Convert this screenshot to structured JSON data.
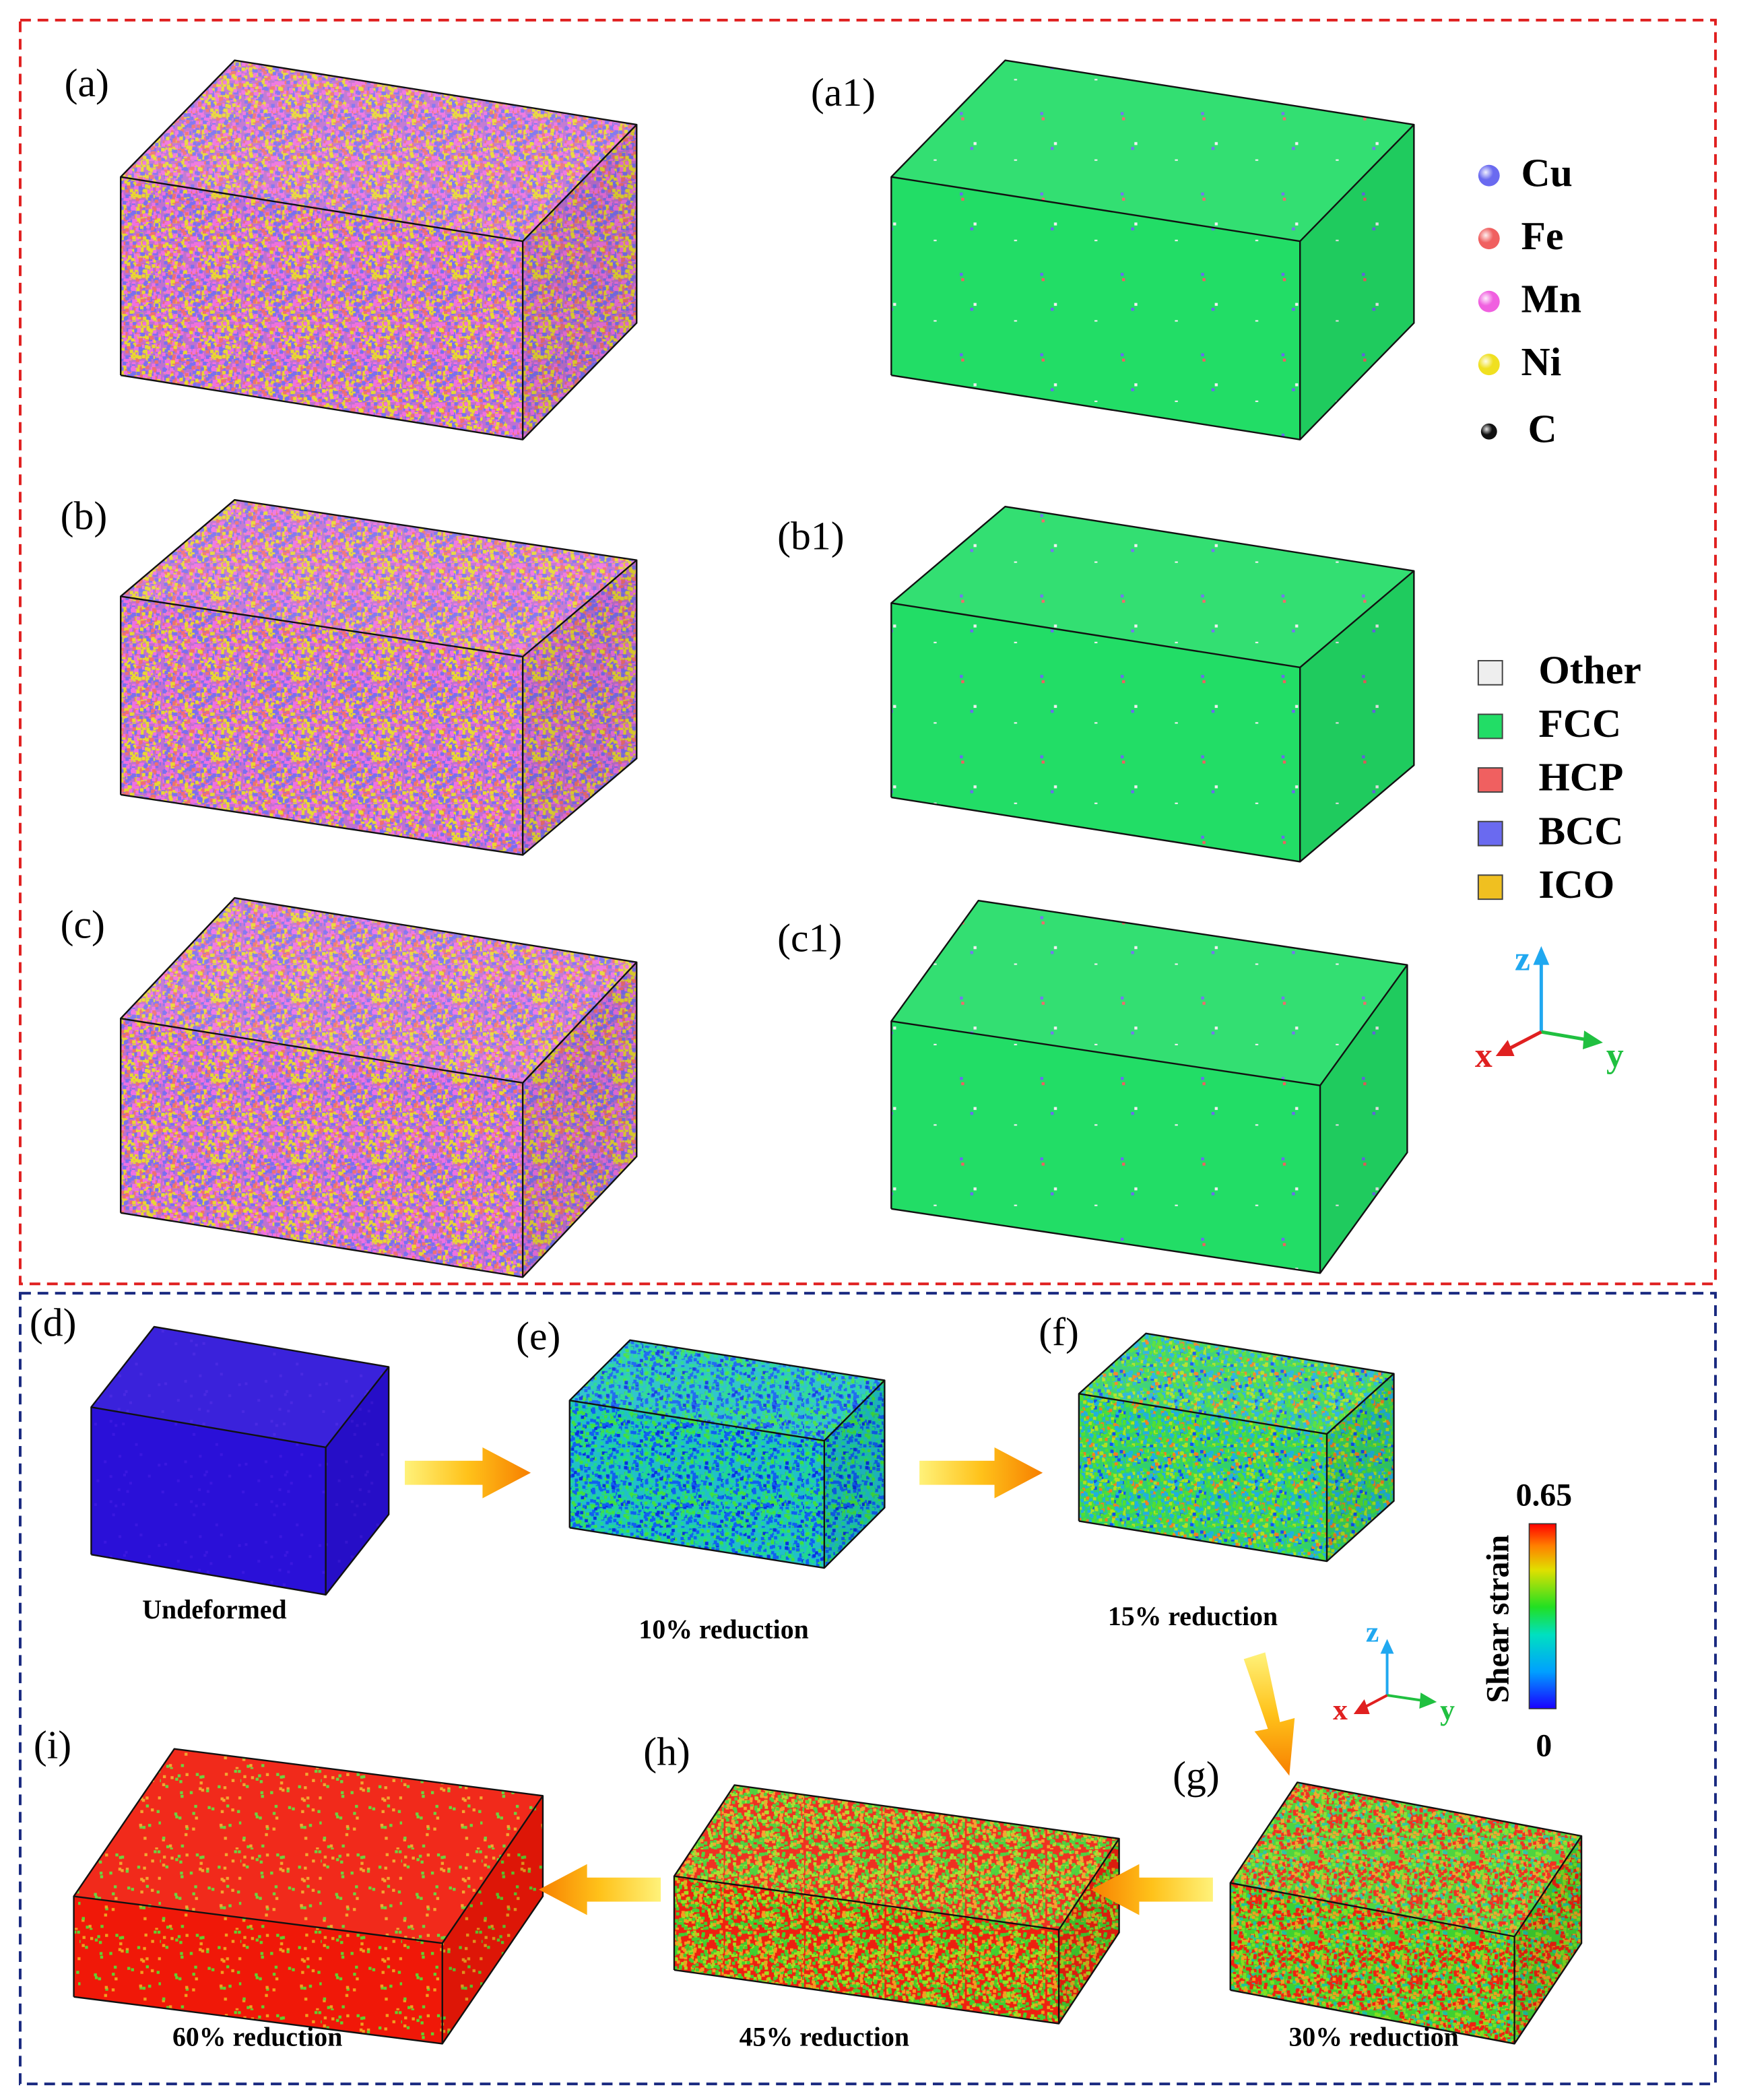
{
  "composition": {
    "panels": [
      "(a)",
      "(b)",
      "(c)"
    ]
  },
  "structure": {
    "panels": [
      "(a1)",
      "(b1)",
      "(c1)"
    ]
  },
  "element_legend": [
    "Cu",
    "Fe",
    "Mn",
    "Ni",
    "C"
  ],
  "structure_legend": [
    "Other",
    "FCC",
    "HCP",
    "BCC",
    "ICO"
  ],
  "axes_top": [
    "z",
    "x",
    "y"
  ],
  "deformation": {
    "stages": [
      {
        "label": "(d)",
        "caption": "Undeformed"
      },
      {
        "label": "(e)",
        "caption": "10% reduction"
      },
      {
        "label": "(f)",
        "caption": "15% reduction"
      },
      {
        "label": "(g)",
        "caption": "30% reduction"
      },
      {
        "label": "(h)",
        "caption": "45% reduction"
      },
      {
        "label": "(i)",
        "caption": "60% reduction"
      }
    ],
    "colorbar": {
      "title": "Shear strain",
      "max": 0.65,
      "min": 0
    },
    "axes": [
      "z",
      "x",
      "y"
    ]
  }
}
